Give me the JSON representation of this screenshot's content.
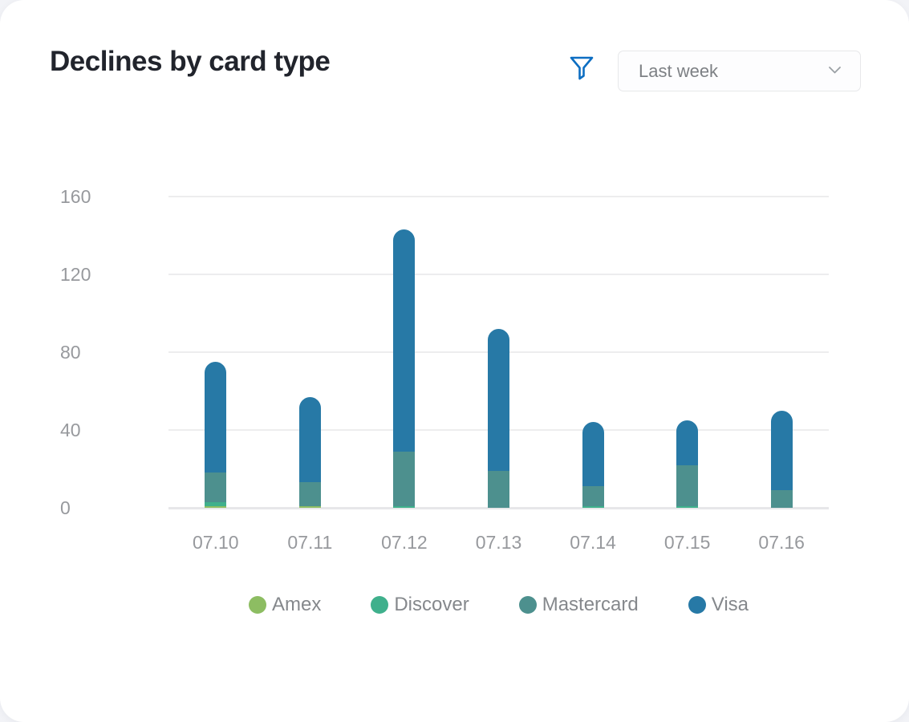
{
  "header": {
    "title": "Declines by card type",
    "filter_icon": "funnel-icon",
    "range_select": {
      "value": "Last week",
      "chevron_icon": "chevron-down-icon"
    }
  },
  "chart_data": {
    "type": "bar",
    "stacked": true,
    "title": "Declines by card type",
    "categories": [
      "07.10",
      "07.11",
      "07.12",
      "07.13",
      "07.14",
      "07.15",
      "07.16"
    ],
    "series": [
      {
        "name": "Amex",
        "color": "#8dbd62",
        "values": [
          1,
          1,
          0,
          0,
          0,
          0,
          0
        ]
      },
      {
        "name": "Discover",
        "color": "#3fb08c",
        "values": [
          2,
          0,
          1,
          0,
          1,
          1,
          0
        ]
      },
      {
        "name": "Mastercard",
        "color": "#4d908e",
        "values": [
          15,
          12,
          28,
          19,
          10,
          21,
          9
        ]
      },
      {
        "name": "Visa",
        "color": "#2779a6",
        "values": [
          57,
          44,
          114,
          73,
          33,
          23,
          41
        ]
      }
    ],
    "totals": [
      75,
      57,
      143,
      92,
      44,
      45,
      50
    ],
    "xlabel": "",
    "ylabel": "",
    "yticks": [
      0,
      40,
      80,
      120,
      160
    ],
    "ylim": [
      0,
      160
    ],
    "grid": true,
    "legend_position": "bottom"
  },
  "colors": {
    "accent_blue": "#0d6ec2",
    "grid": "#ededee",
    "axis_text": "#97999d",
    "legend_text": "#85888c",
    "title_text": "#21242c",
    "card_bg": "#ffffff",
    "page_bg": "#f2f3f7"
  }
}
